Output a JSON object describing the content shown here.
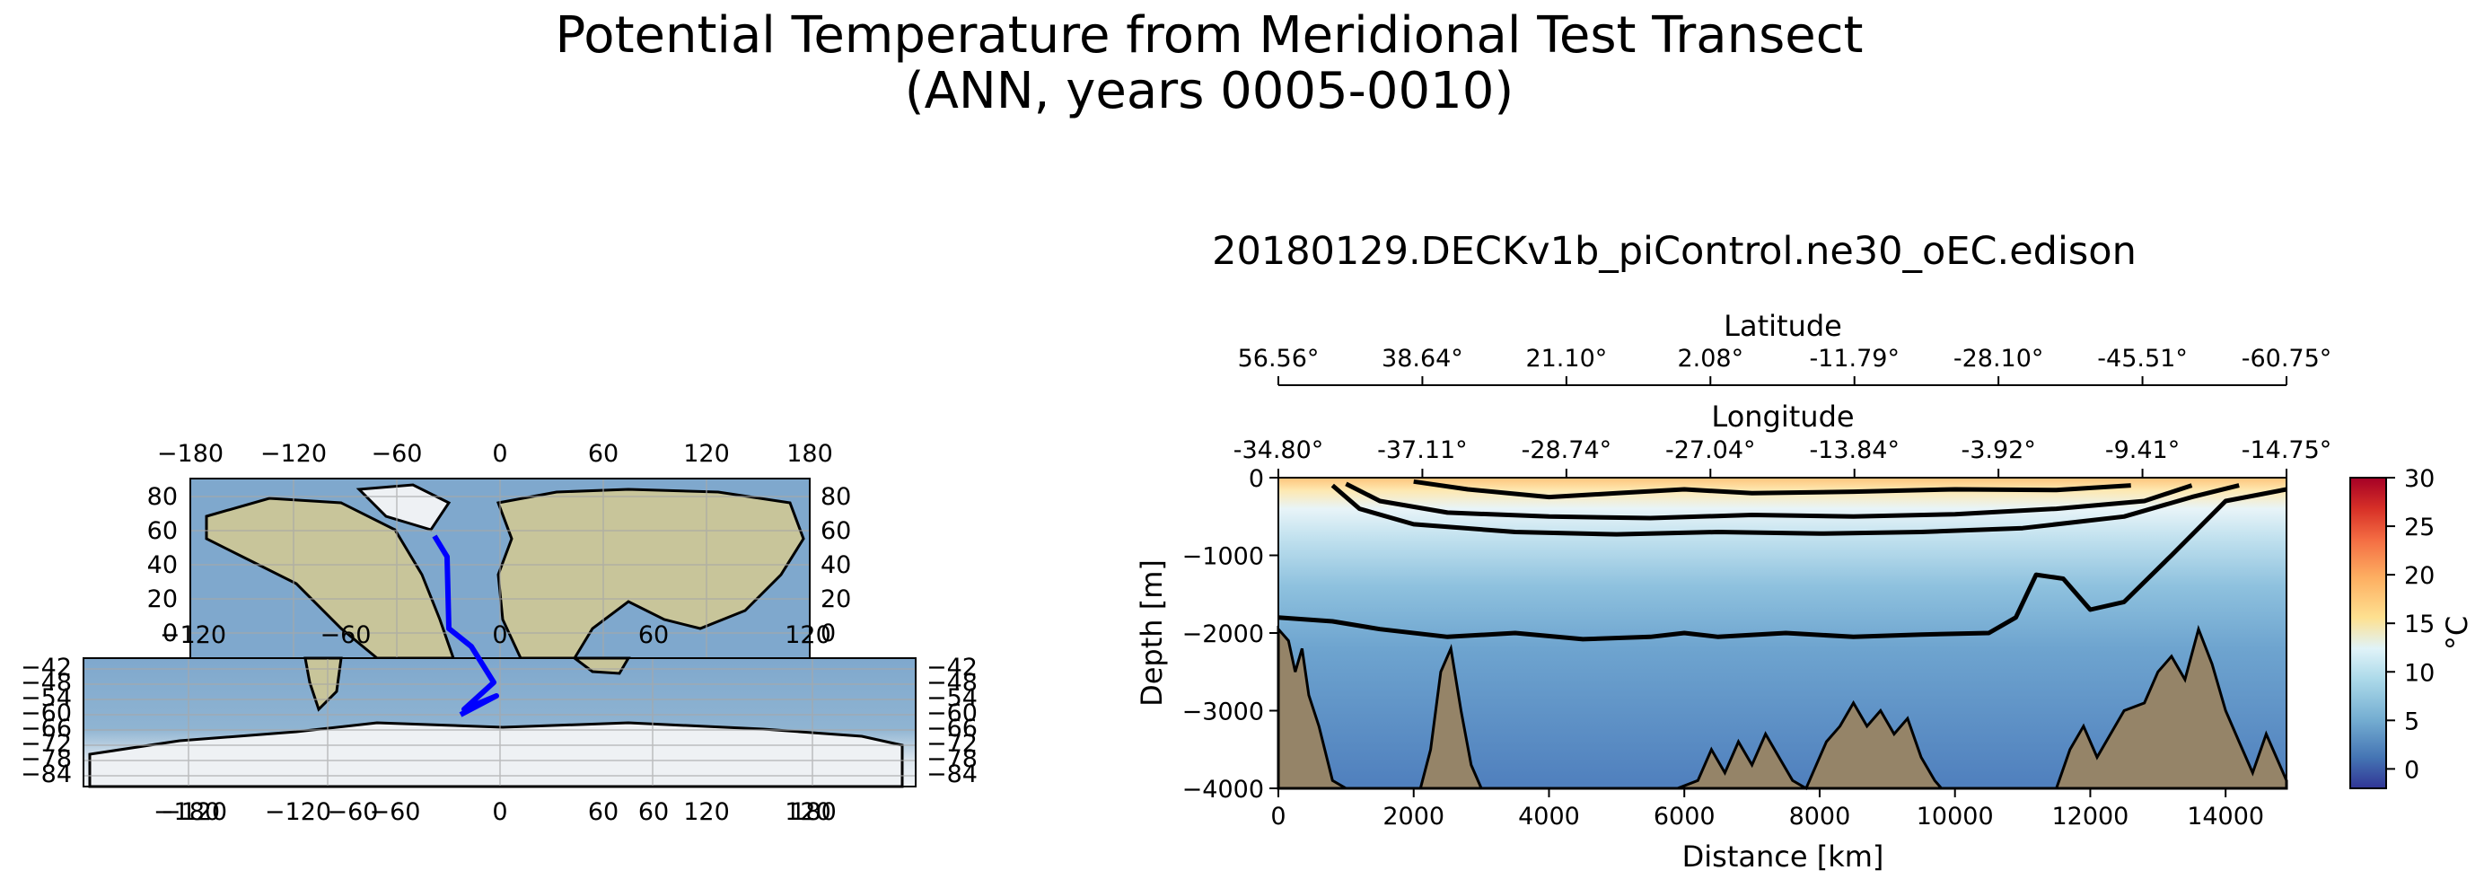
{
  "title_line1": "Potential Temperature from Meridional Test Transect",
  "title_line2": "(ANN, years 0005-0010)",
  "map": {
    "top_lon_ticks": [
      "−180",
      "−120",
      "−60",
      "0",
      "60",
      "120",
      "180"
    ],
    "lat_ticks": [
      "80",
      "60",
      "40",
      "20",
      "0"
    ],
    "mid_lon_ticks": [
      "−120",
      "−60",
      "0",
      "60",
      "120"
    ],
    "polar_lat_ticks": [
      "−42",
      "−48",
      "−54",
      "−60",
      "−66",
      "−72",
      "−78",
      "−84"
    ],
    "bottom_lon_ticks": [
      "−180",
      "−120",
      "−120",
      "−60",
      "−60",
      "0",
      "60",
      "60",
      "120",
      "120",
      "180"
    ],
    "transect_color": "#0000ff",
    "ocean_color": "#7fa8cd",
    "land_color": "#c8c59a",
    "ice_color": "#e9eef3"
  },
  "chart_data": {
    "type": "heatmap",
    "title": "20180129.DECKv1b_piControl.ne30_oEC.edison",
    "xlabel": "Distance [km]",
    "ylabel": "Depth [m]",
    "xlim": [
      0,
      14900
    ],
    "ylim": [
      -4000,
      0
    ],
    "x_ticks": [
      "0",
      "2000",
      "4000",
      "6000",
      "8000",
      "10000",
      "12000",
      "14000"
    ],
    "y_ticks": [
      "0",
      "−1000",
      "−2000",
      "−3000",
      "−4000"
    ],
    "latitude_label": "Latitude",
    "latitude_ticks": [
      "56.56°",
      "38.64°",
      "21.10°",
      "2.08°",
      "-11.79°",
      "-28.10°",
      "-45.51°",
      "-60.75°"
    ],
    "longitude_label": "Longitude",
    "longitude_ticks": [
      "-34.80°",
      "-37.11°",
      "-28.74°",
      "-27.04°",
      "-13.84°",
      "-3.92°",
      "-9.41°",
      "-14.75°"
    ],
    "colorbar": {
      "label": "°C",
      "range": [
        -2,
        30
      ],
      "ticks": [
        "30",
        "25",
        "20",
        "15",
        "10",
        "5",
        "0"
      ],
      "colormap": "RdYlBu_r"
    },
    "contour_levels_C": [
      4,
      8,
      12,
      20
    ],
    "contours": [
      {
        "level": 4,
        "points": [
          [
            0,
            -1800
          ],
          [
            800,
            -1850
          ],
          [
            1500,
            -1950
          ],
          [
            2500,
            -2050
          ],
          [
            3500,
            -2000
          ],
          [
            4500,
            -2080
          ],
          [
            5500,
            -2050
          ],
          [
            6000,
            -2000
          ],
          [
            6500,
            -2050
          ],
          [
            7500,
            -2000
          ],
          [
            8500,
            -2050
          ],
          [
            9500,
            -2020
          ],
          [
            10500,
            -2000
          ],
          [
            10900,
            -1800
          ],
          [
            11200,
            -1250
          ],
          [
            11600,
            -1300
          ],
          [
            12000,
            -1700
          ],
          [
            12500,
            -1600
          ],
          [
            13200,
            -1000
          ],
          [
            14000,
            -300
          ],
          [
            14900,
            -150
          ]
        ]
      },
      {
        "level": 8,
        "points": [
          [
            800,
            -100
          ],
          [
            1200,
            -400
          ],
          [
            2000,
            -600
          ],
          [
            3500,
            -700
          ],
          [
            5000,
            -730
          ],
          [
            6500,
            -700
          ],
          [
            8000,
            -720
          ],
          [
            9500,
            -700
          ],
          [
            11000,
            -650
          ],
          [
            12500,
            -500
          ],
          [
            13500,
            -250
          ],
          [
            14200,
            -100
          ]
        ]
      },
      {
        "level": 12,
        "points": [
          [
            1000,
            -80
          ],
          [
            1500,
            -300
          ],
          [
            2500,
            -450
          ],
          [
            4000,
            -500
          ],
          [
            5500,
            -520
          ],
          [
            7000,
            -480
          ],
          [
            8500,
            -500
          ],
          [
            10000,
            -470
          ],
          [
            11500,
            -400
          ],
          [
            12800,
            -300
          ],
          [
            13500,
            -100
          ]
        ]
      },
      {
        "level": 20,
        "points": [
          [
            2000,
            -50
          ],
          [
            2800,
            -150
          ],
          [
            4000,
            -250
          ],
          [
            5000,
            -200
          ],
          [
            6000,
            -150
          ],
          [
            7000,
            -200
          ],
          [
            8500,
            -180
          ],
          [
            10000,
            -150
          ],
          [
            11500,
            -160
          ],
          [
            12600,
            -100
          ]
        ]
      }
    ],
    "bathymetry": [
      [
        0,
        -1950
      ],
      [
        150,
        -2100
      ],
      [
        250,
        -2500
      ],
      [
        350,
        -2200
      ],
      [
        450,
        -2800
      ],
      [
        600,
        -3200
      ],
      [
        800,
        -3900
      ],
      [
        1000,
        -4000
      ],
      [
        2100,
        -4000
      ],
      [
        2250,
        -3500
      ],
      [
        2400,
        -2500
      ],
      [
        2550,
        -2200
      ],
      [
        2700,
        -3000
      ],
      [
        2850,
        -3700
      ],
      [
        3000,
        -4000
      ],
      [
        5900,
        -4000
      ],
      [
        6200,
        -3900
      ],
      [
        6400,
        -3500
      ],
      [
        6600,
        -3800
      ],
      [
        6800,
        -3400
      ],
      [
        7000,
        -3700
      ],
      [
        7200,
        -3300
      ],
      [
        7400,
        -3600
      ],
      [
        7600,
        -3900
      ],
      [
        7800,
        -4000
      ],
      [
        7900,
        -3800
      ],
      [
        8100,
        -3400
      ],
      [
        8300,
        -3200
      ],
      [
        8500,
        -2900
      ],
      [
        8700,
        -3200
      ],
      [
        8900,
        -3000
      ],
      [
        9100,
        -3300
      ],
      [
        9300,
        -3100
      ],
      [
        9500,
        -3600
      ],
      [
        9700,
        -3900
      ],
      [
        9800,
        -4000
      ],
      [
        11500,
        -4000
      ],
      [
        11700,
        -3500
      ],
      [
        11900,
        -3200
      ],
      [
        12100,
        -3600
      ],
      [
        12300,
        -3300
      ],
      [
        12500,
        -3000
      ],
      [
        12800,
        -2900
      ],
      [
        13000,
        -2500
      ],
      [
        13200,
        -2300
      ],
      [
        13400,
        -2600
      ],
      [
        13600,
        -1950
      ],
      [
        13800,
        -2400
      ],
      [
        14000,
        -3000
      ],
      [
        14200,
        -3400
      ],
      [
        14400,
        -3800
      ],
      [
        14600,
        -3300
      ],
      [
        14900,
        -3900
      ],
      [
        14900,
        -4000
      ]
    ]
  }
}
